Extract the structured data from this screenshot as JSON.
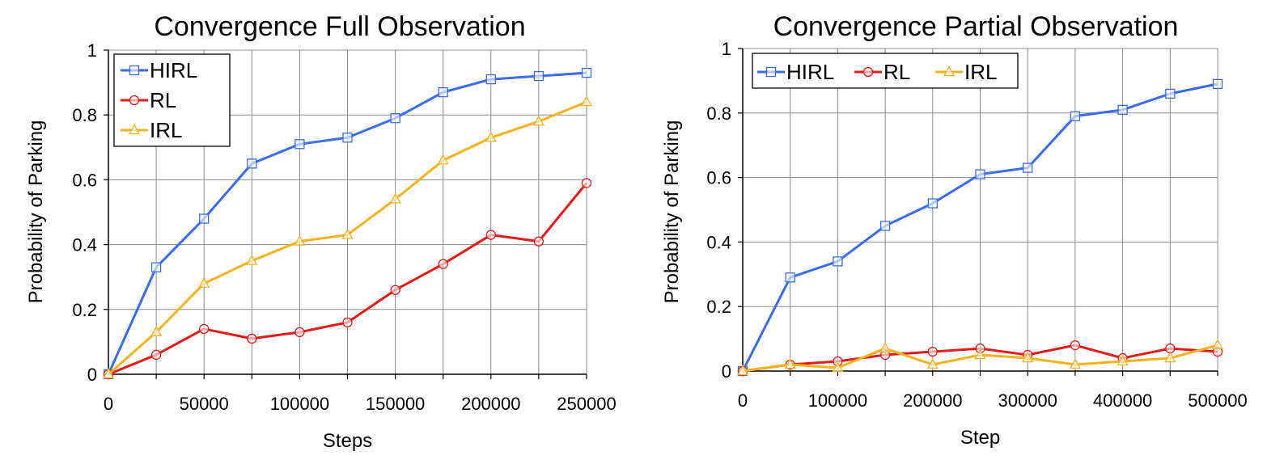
{
  "chart_data": [
    {
      "type": "line",
      "title": "Convergence Full Observation",
      "xlabel": "Steps",
      "ylabel": "Probability of Parking",
      "xlim": [
        0,
        250000
      ],
      "ylim": [
        0,
        1
      ],
      "x": [
        0,
        25000,
        50000,
        75000,
        100000,
        125000,
        150000,
        175000,
        200000,
        225000,
        250000
      ],
      "x_ticks": [
        "0",
        "50000",
        "100000",
        "150000",
        "200000",
        "250000"
      ],
      "y_ticks": [
        "0",
        "0.2",
        "0.4",
        "0.6",
        "0.8",
        "1"
      ],
      "grid": true,
      "legend": "top-left",
      "series": [
        {
          "name": "HIRL",
          "color": "#3a6bf0",
          "marker": "square",
          "values": [
            0,
            0.33,
            0.48,
            0.65,
            0.71,
            0.73,
            0.79,
            0.87,
            0.91,
            0.92,
            0.93
          ]
        },
        {
          "name": "RL",
          "color": "#e81919",
          "marker": "circle",
          "values": [
            0,
            0.06,
            0.14,
            0.11,
            0.13,
            0.16,
            0.26,
            0.34,
            0.43,
            0.41,
            0.59
          ]
        },
        {
          "name": "IRL",
          "color": "#f5b21b",
          "marker": "triangle",
          "values": [
            0,
            0.13,
            0.28,
            0.35,
            0.41,
            0.43,
            0.54,
            0.66,
            0.73,
            0.78,
            0.84
          ]
        }
      ]
    },
    {
      "type": "line",
      "title": "Convergence Partial Observation",
      "xlabel": "Step",
      "ylabel": "Probability of Parking",
      "xlim": [
        0,
        500000
      ],
      "ylim": [
        0,
        1
      ],
      "x": [
        0,
        50000,
        100000,
        150000,
        200000,
        250000,
        300000,
        350000,
        400000,
        450000,
        500000
      ],
      "x_ticks": [
        "0",
        "100000",
        "200000",
        "300000",
        "400000",
        "500000"
      ],
      "y_ticks": [
        "0",
        "0.2",
        "0.4",
        "0.6",
        "0.8",
        "1"
      ],
      "grid": true,
      "legend": "top-left",
      "series": [
        {
          "name": "HIRL",
          "color": "#3a6bf0",
          "marker": "square",
          "values": [
            0,
            0.29,
            0.34,
            0.45,
            0.52,
            0.61,
            0.63,
            0.79,
            0.81,
            0.86,
            0.89
          ]
        },
        {
          "name": "RL",
          "color": "#e81919",
          "marker": "circle",
          "values": [
            0,
            0.02,
            0.03,
            0.05,
            0.06,
            0.07,
            0.05,
            0.08,
            0.04,
            0.07,
            0.06
          ]
        },
        {
          "name": "IRL",
          "color": "#f5b21b",
          "marker": "triangle",
          "values": [
            0,
            0.02,
            0.01,
            0.07,
            0.02,
            0.05,
            0.04,
            0.02,
            0.03,
            0.04,
            0.08
          ]
        }
      ]
    }
  ]
}
